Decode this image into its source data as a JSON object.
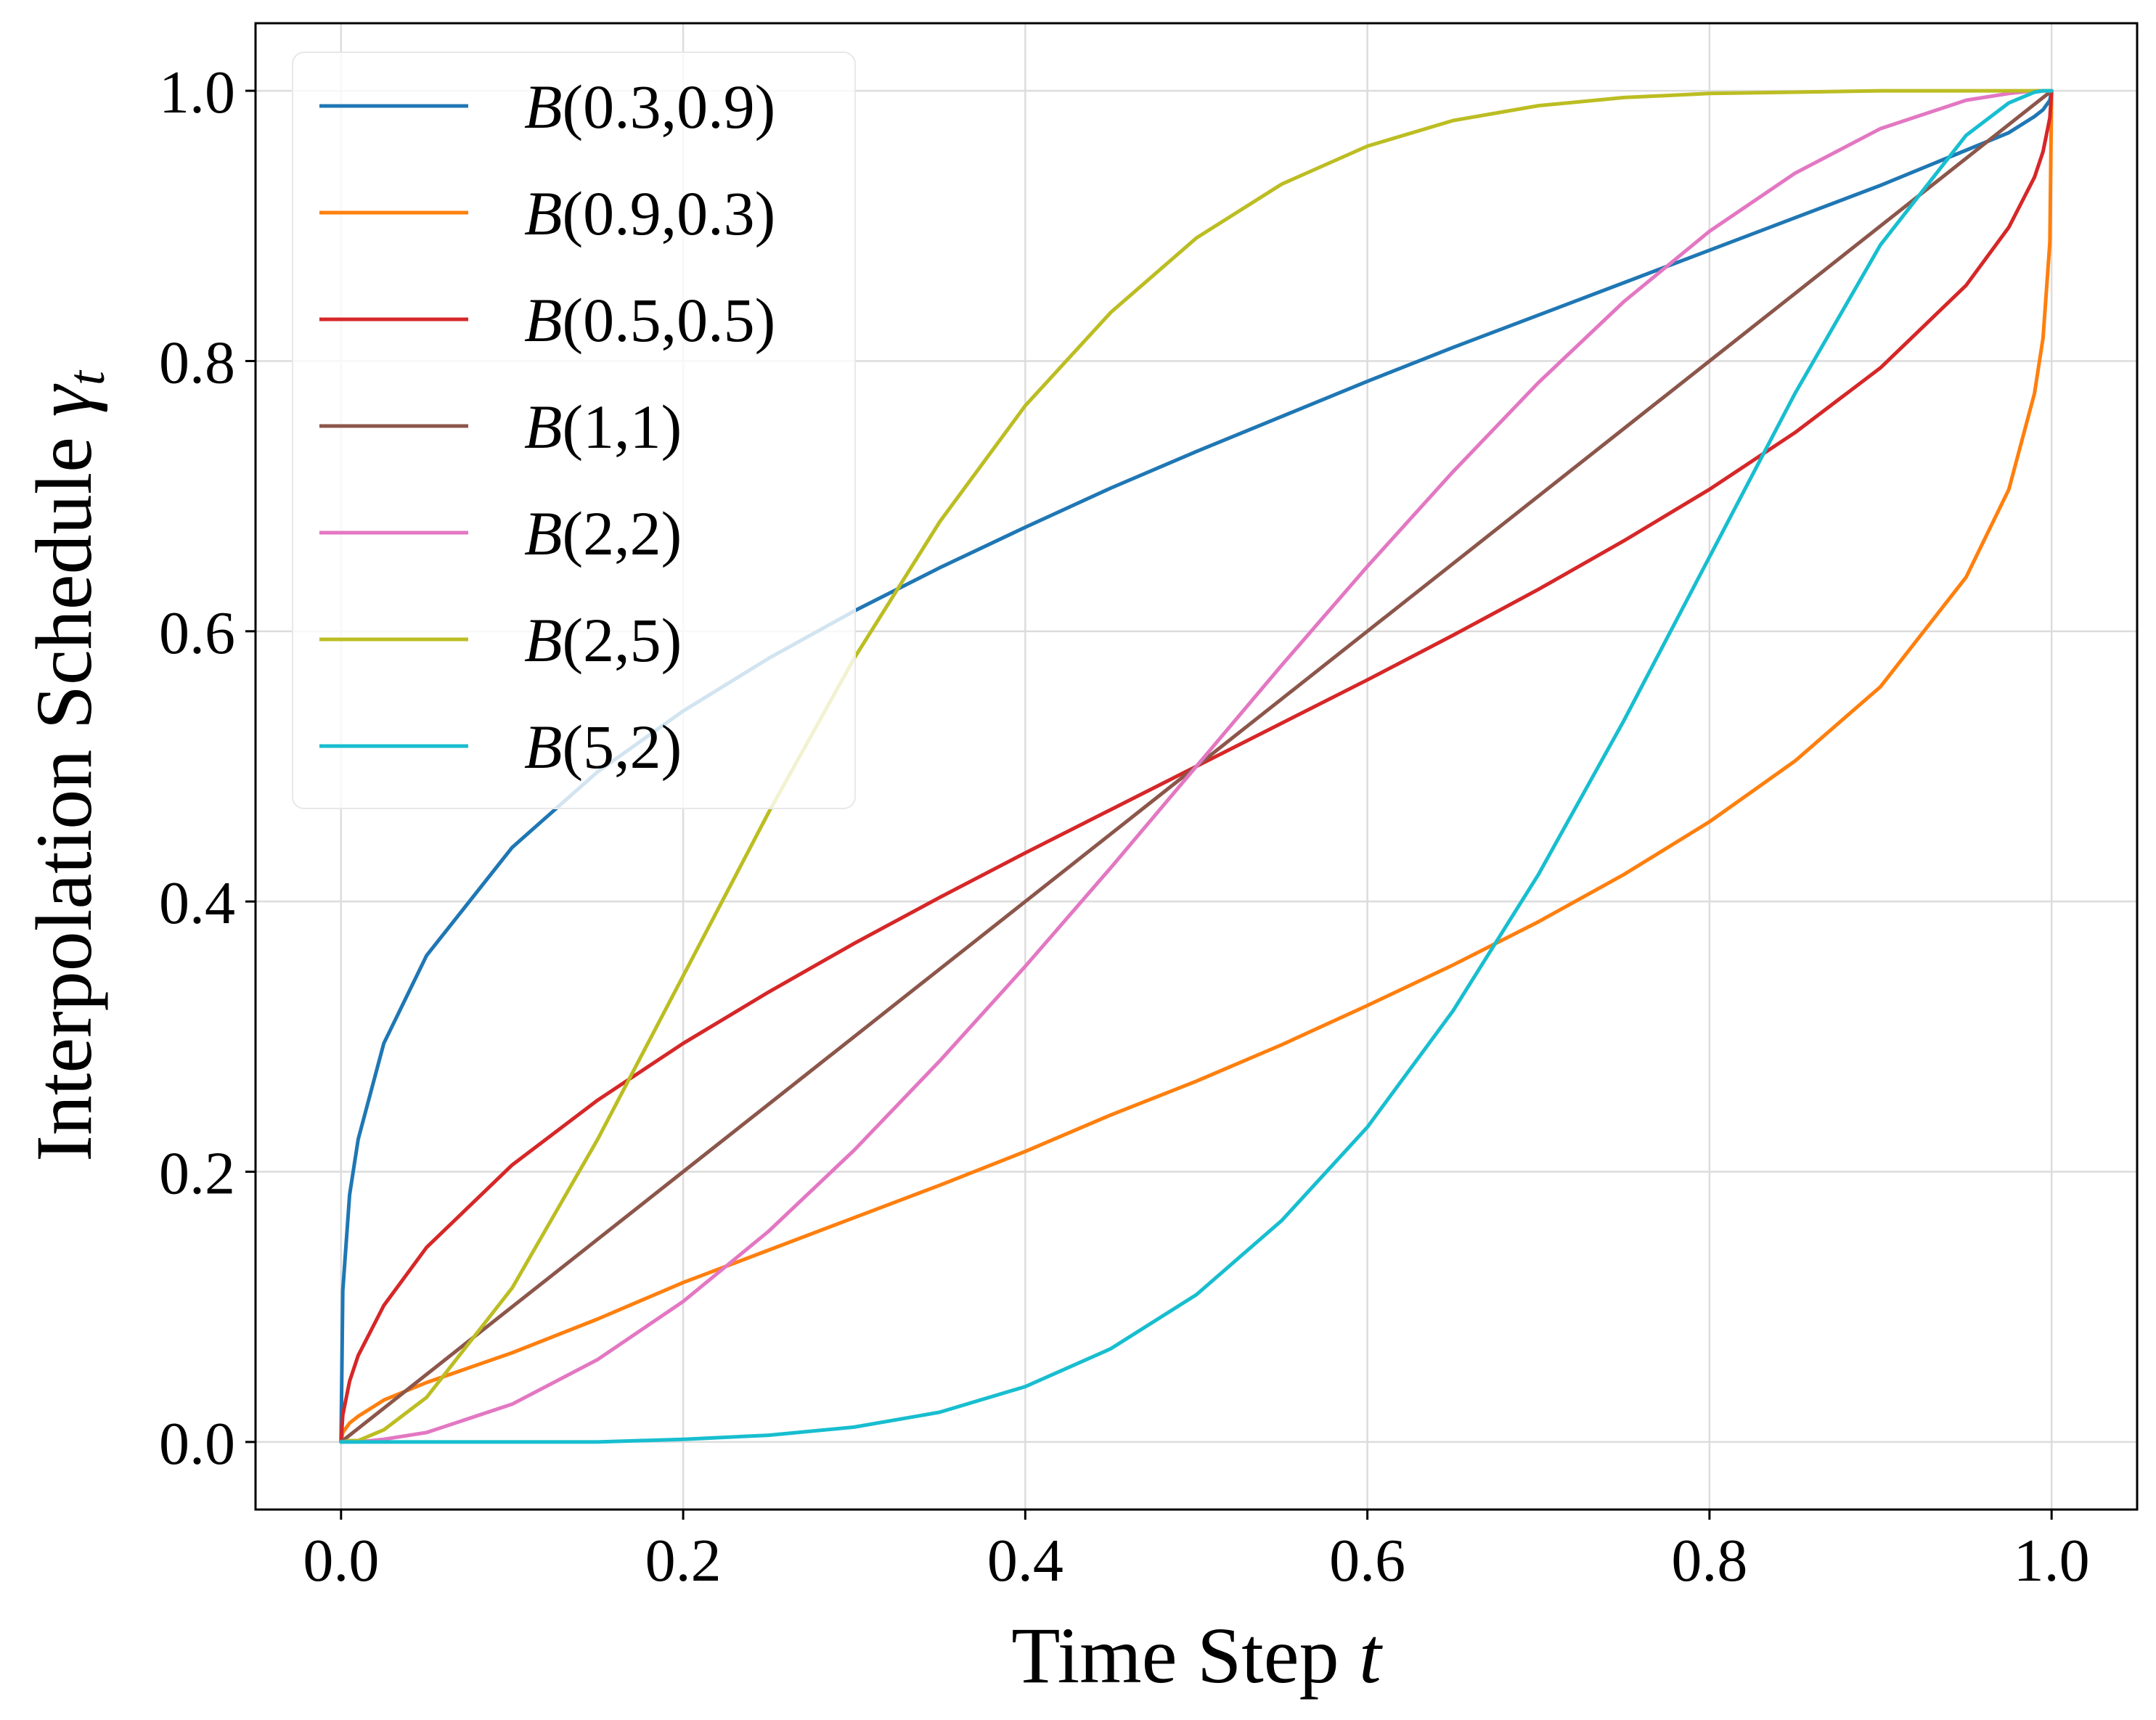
{
  "chart_data": {
    "type": "line",
    "title": "",
    "xlabel": "Time Step",
    "xlabel_var": "t",
    "ylabel": "Interpolation Schedule",
    "ylabel_var": "γ",
    "ylabel_sub": "t",
    "xlim": [
      -0.05,
      1.05
    ],
    "ylim": [
      -0.05,
      1.05
    ],
    "grid": true,
    "legend_position": "top-left",
    "xticks": [
      0.0,
      0.2,
      0.4,
      0.6,
      0.8,
      1.0
    ],
    "yticks": [
      0.0,
      0.2,
      0.4,
      0.6,
      0.8,
      1.0
    ],
    "xtick_labels": [
      "0.0",
      "0.2",
      "0.4",
      "0.6",
      "0.8",
      "1.0"
    ],
    "ytick_labels": [
      "0.0",
      "0.2",
      "0.4",
      "0.6",
      "0.8",
      "1.0"
    ],
    "x": [
      0.0,
      0.001,
      0.005,
      0.01,
      0.025,
      0.05,
      0.1,
      0.15,
      0.2,
      0.25,
      0.3,
      0.35,
      0.4,
      0.45,
      0.5,
      0.55,
      0.6,
      0.65,
      0.7,
      0.75,
      0.8,
      0.85,
      0.9,
      0.95,
      0.975,
      0.99,
      0.995,
      0.999,
      1.0
    ],
    "series": [
      {
        "name": "B(0.3, 0.9)",
        "fn": "B",
        "params": "(0.3, 0.9)",
        "color": "#1f77b4",
        "values": [
          0.0,
          0.112,
          0.183,
          0.224,
          0.295,
          0.36,
          0.44,
          0.496,
          0.541,
          0.58,
          0.615,
          0.647,
          0.677,
          0.706,
          0.733,
          0.759,
          0.785,
          0.81,
          0.834,
          0.858,
          0.882,
          0.906,
          0.93,
          0.956,
          0.969,
          0.981,
          0.986,
          0.993,
          1.0
        ]
      },
      {
        "name": "B(0.9, 0.3)",
        "fn": "B",
        "params": "(0.9, 0.3)",
        "color": "#ff7f0e",
        "values": [
          0.0,
          0.007,
          0.014,
          0.019,
          0.031,
          0.044,
          0.066,
          0.091,
          0.118,
          0.142,
          0.166,
          0.19,
          0.215,
          0.242,
          0.267,
          0.294,
          0.323,
          0.353,
          0.385,
          0.42,
          0.459,
          0.504,
          0.559,
          0.64,
          0.705,
          0.776,
          0.817,
          0.888,
          1.0
        ]
      },
      {
        "name": "B(0.5, 0.5)",
        "fn": "B",
        "params": "(0.5, 0.5)",
        "color": "#d62728",
        "values": [
          0.0,
          0.02,
          0.045,
          0.064,
          0.101,
          0.144,
          0.205,
          0.253,
          0.295,
          0.333,
          0.369,
          0.403,
          0.436,
          0.468,
          0.5,
          0.532,
          0.564,
          0.597,
          0.631,
          0.667,
          0.705,
          0.747,
          0.795,
          0.856,
          0.899,
          0.936,
          0.955,
          0.98,
          1.0
        ]
      },
      {
        "name": "B(1, 1)",
        "fn": "B",
        "params": "(1, 1)",
        "color": "#8c564b",
        "values": [
          0.0,
          0.001,
          0.005,
          0.01,
          0.025,
          0.05,
          0.1,
          0.15,
          0.2,
          0.25,
          0.3,
          0.35,
          0.4,
          0.45,
          0.5,
          0.55,
          0.6,
          0.65,
          0.7,
          0.75,
          0.8,
          0.85,
          0.9,
          0.95,
          0.975,
          0.99,
          0.995,
          0.999,
          1.0
        ]
      },
      {
        "name": "B(2, 2)",
        "fn": "B",
        "params": "(2, 2)",
        "color": "#e377c2",
        "values": [
          0.0,
          0.0,
          0.0,
          0.0,
          0.002,
          0.007,
          0.028,
          0.061,
          0.104,
          0.156,
          0.216,
          0.282,
          0.352,
          0.425,
          0.5,
          0.575,
          0.648,
          0.718,
          0.784,
          0.844,
          0.896,
          0.939,
          0.972,
          0.993,
          0.998,
          1.0,
          1.0,
          1.0,
          1.0
        ]
      },
      {
        "name": "B(2, 5)",
        "fn": "B",
        "params": "(2, 5)",
        "color": "#bcbd22",
        "values": [
          0.0,
          0.0,
          0.001,
          0.001,
          0.009,
          0.033,
          0.114,
          0.224,
          0.345,
          0.466,
          0.58,
          0.681,
          0.767,
          0.836,
          0.891,
          0.931,
          0.959,
          0.978,
          0.989,
          0.995,
          0.998,
          0.999,
          1.0,
          1.0,
          1.0,
          1.0,
          1.0,
          1.0,
          1.0
        ]
      },
      {
        "name": "B(5, 2)",
        "fn": "B",
        "params": "(5, 2)",
        "color": "#17becf",
        "values": [
          0.0,
          0.0,
          0.0,
          0.0,
          0.0,
          0.0,
          0.0,
          0.0,
          0.002,
          0.005,
          0.011,
          0.022,
          0.041,
          0.069,
          0.109,
          0.164,
          0.233,
          0.319,
          0.42,
          0.534,
          0.655,
          0.776,
          0.886,
          0.967,
          0.991,
          0.999,
          1.0,
          1.0,
          1.0
        ]
      }
    ]
  }
}
